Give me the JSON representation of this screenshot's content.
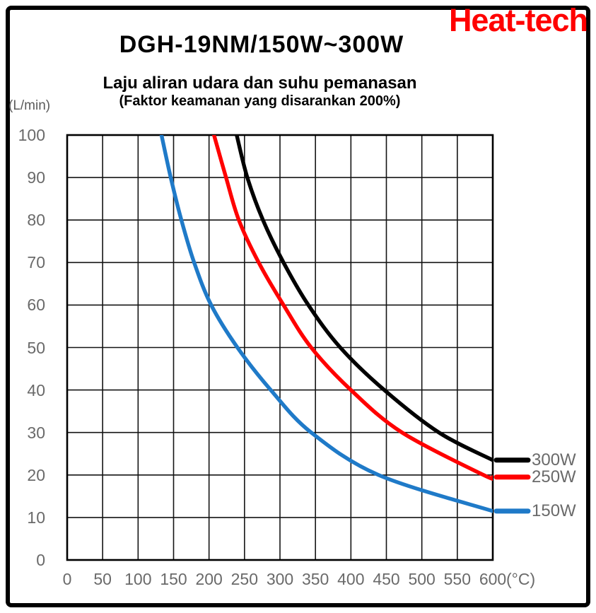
{
  "brand": {
    "logo_text": "Heat-tech",
    "logo_color": "#ff0000"
  },
  "header": {
    "title": "DGH-19NM/150W~300W",
    "subtitle": "Laju aliran udara dan suhu pemanasan",
    "safety_note": "(Faktor keamanan yang disarankan 200%)"
  },
  "axes": {
    "y_unit": "(L/min)",
    "x_unit": "(°C)",
    "x_ticks": [
      0,
      50,
      100,
      150,
      200,
      250,
      300,
      350,
      400,
      450,
      500,
      550,
      600
    ],
    "y_ticks": [
      100,
      90,
      80,
      70,
      60,
      50,
      40,
      30,
      20,
      10,
      0
    ],
    "tick_color": "#6a6a6a",
    "grid_color": "#141414"
  },
  "chart_data": {
    "type": "line",
    "title": "Laju aliran udara dan suhu pemanasan",
    "subtitle": "(Faktor keamanan yang disarankan 200%)",
    "xlabel": "°C",
    "ylabel": "L/min",
    "xlim": [
      0,
      600
    ],
    "ylim": [
      0,
      100
    ],
    "x_step": 50,
    "y_step": 10,
    "grid": true,
    "legend_position": "right",
    "series": [
      {
        "name": "300W",
        "color": "#000000",
        "points": [
          [
            239,
            100
          ],
          [
            254,
            90
          ],
          [
            276,
            80
          ],
          [
            305,
            70
          ],
          [
            340,
            60
          ],
          [
            385,
            50
          ],
          [
            447,
            40
          ],
          [
            524,
            30
          ],
          [
            600,
            23.5
          ]
        ]
      },
      {
        "name": "250W",
        "color": "#ff0000",
        "points": [
          [
            207,
            100
          ],
          [
            224,
            90
          ],
          [
            242,
            80
          ],
          [
            270,
            70
          ],
          [
            305,
            60
          ],
          [
            344,
            50
          ],
          [
            400,
            40
          ],
          [
            472,
            30
          ],
          [
            587,
            20
          ],
          [
            600,
            19.5
          ]
        ]
      },
      {
        "name": "150W",
        "color": "#1f7ac8",
        "points": [
          [
            133,
            100
          ],
          [
            146,
            90
          ],
          [
            161,
            80
          ],
          [
            179,
            70
          ],
          [
            203,
            60
          ],
          [
            240,
            50
          ],
          [
            287,
            40
          ],
          [
            344,
            30
          ],
          [
            439,
            20
          ],
          [
            600,
            11.5
          ]
        ]
      }
    ]
  }
}
